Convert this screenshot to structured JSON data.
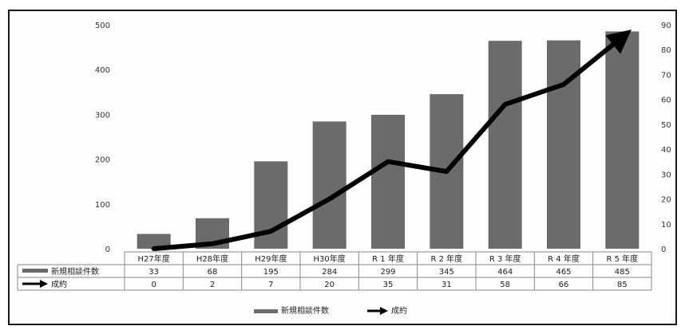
{
  "chart_data": {
    "type": "bar",
    "categories": [
      "H27年度",
      "H28年度",
      "H29年度",
      "H30年度",
      "R 1 年度",
      "R 2 年度",
      "R 3 年度",
      "R 4 年度",
      "R 5 年度"
    ],
    "series": [
      {
        "name": "新規相談件数",
        "type": "bar",
        "axis": "left",
        "values": [
          33,
          68,
          195,
          284,
          299,
          345,
          464,
          465,
          485
        ],
        "color": "#6b6b6b"
      },
      {
        "name": "成約",
        "type": "line",
        "axis": "right",
        "values": [
          0,
          2,
          7,
          20,
          35,
          31,
          58,
          66,
          85
        ],
        "color": "#000000"
      }
    ],
    "table_values": [
      [
        "33",
        "68",
        "195",
        "284",
        "299",
        "345",
        "464",
        "465",
        "485"
      ],
      [
        "0",
        "2",
        "7",
        "20",
        "35",
        "31",
        "58",
        "66",
        "85"
      ]
    ],
    "y_left": {
      "min": 0,
      "max": 500,
      "ticks": [
        "0",
        "100",
        "200",
        "300",
        "400",
        "500"
      ]
    },
    "y_right": {
      "min": 0,
      "max": 90,
      "ticks": [
        "0",
        "10",
        "20",
        "30",
        "40",
        "50",
        "60",
        "70",
        "80",
        "90"
      ]
    },
    "legend_position": "bottom",
    "grid": false
  }
}
